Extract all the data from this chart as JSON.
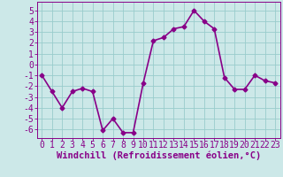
{
  "x": [
    0,
    1,
    2,
    3,
    4,
    5,
    6,
    7,
    8,
    9,
    10,
    11,
    12,
    13,
    14,
    15,
    16,
    17,
    18,
    19,
    20,
    21,
    22,
    23
  ],
  "y": [
    -1.0,
    -2.5,
    -4.0,
    -2.5,
    -2.2,
    -2.5,
    -6.1,
    -5.0,
    -6.3,
    -6.3,
    -1.7,
    2.2,
    2.5,
    3.3,
    3.5,
    5.0,
    4.0,
    3.3,
    -1.2,
    -2.3,
    -2.3,
    -1.0,
    -1.5,
    -1.7
  ],
  "line_color": "#880088",
  "marker": "D",
  "marker_size": 2.5,
  "bg_color": "#cce8e8",
  "grid_color": "#99cccc",
  "xlabel": "Windchill (Refroidissement éolien,°C)",
  "xlabel_fontsize": 7.5,
  "tick_fontsize": 7,
  "ylim": [
    -6.8,
    5.8
  ],
  "yticks": [
    -6,
    -5,
    -4,
    -3,
    -2,
    -1,
    0,
    1,
    2,
    3,
    4,
    5
  ],
  "xticks": [
    0,
    1,
    2,
    3,
    4,
    5,
    6,
    7,
    8,
    9,
    10,
    11,
    12,
    13,
    14,
    15,
    16,
    17,
    18,
    19,
    20,
    21,
    22,
    23
  ],
  "line_width": 1.2
}
